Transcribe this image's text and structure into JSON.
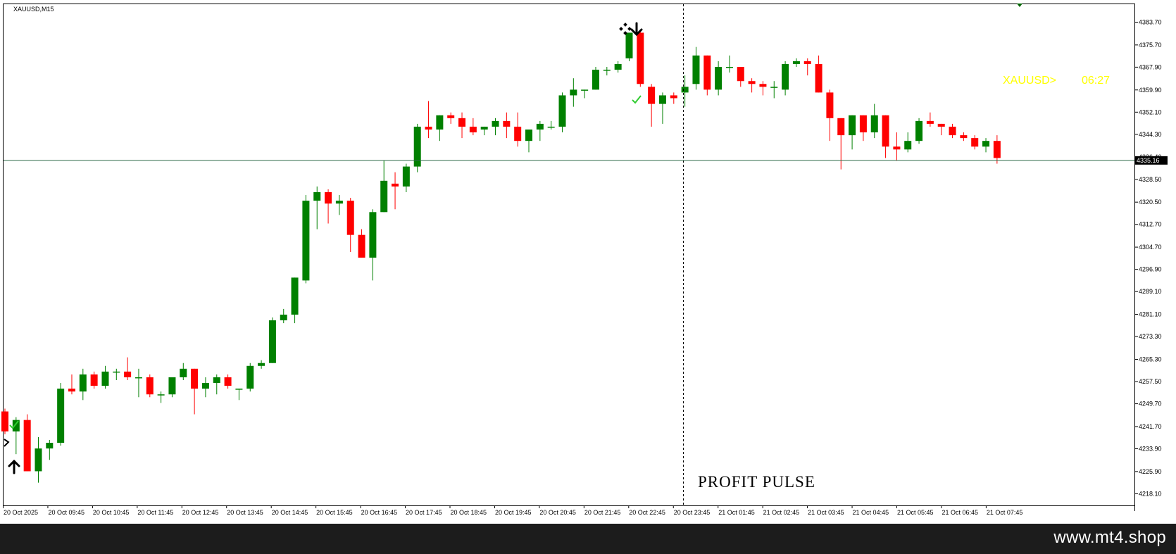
{
  "chart": {
    "symbol_label": "XAUUSD,M15",
    "info_symbol": "XAUUSD>",
    "info_timer": "06:27",
    "watermark": "PROFIT PULSE",
    "current_price_label": "4335.16",
    "colors": {
      "bull": "#008000",
      "bear": "#ff0000",
      "bid_line": "#2f6b4a",
      "info_text": "#ffff00",
      "axis": "#000000"
    }
  },
  "footer": {
    "text": "www.mt4.shop"
  },
  "chart_data": {
    "type": "candlestick",
    "symbol": "XAUUSD",
    "timeframe": "M15",
    "ylim": [
      4214,
      4390
    ],
    "y_ticks": [
      "4383.70",
      "4375.70",
      "4367.90",
      "4359.90",
      "4352.10",
      "4344.30",
      "4336.40",
      "4328.50",
      "4320.50",
      "4312.70",
      "4304.70",
      "4296.90",
      "4289.10",
      "4281.10",
      "4273.30",
      "4265.30",
      "4257.50",
      "4249.70",
      "4241.70",
      "4233.90",
      "4225.90",
      "4218.10"
    ],
    "x_ticks": [
      "20 Oct 2025",
      "20 Oct 09:45",
      "20 Oct 10:45",
      "20 Oct 11:45",
      "20 Oct 12:45",
      "20 Oct 13:45",
      "20 Oct 14:45",
      "20 Oct 15:45",
      "20 Oct 16:45",
      "20 Oct 17:45",
      "20 Oct 18:45",
      "20 Oct 19:45",
      "20 Oct 20:45",
      "20 Oct 21:45",
      "20 Oct 22:45",
      "20 Oct 23:45",
      "21 Oct 01:45",
      "21 Oct 02:45",
      "21 Oct 03:45",
      "21 Oct 04:45",
      "21 Oct 05:45",
      "21 Oct 06:45",
      "21 Oct 07:45"
    ],
    "current_price": 4335.16,
    "candles": [
      {
        "o": 4247,
        "h": 4248,
        "l": 4239,
        "c": 4240
      },
      {
        "o": 4240,
        "h": 4245,
        "l": 4232,
        "c": 4244
      },
      {
        "o": 4244,
        "h": 4246,
        "l": 4226,
        "c": 4226
      },
      {
        "o": 4226,
        "h": 4238,
        "l": 4222,
        "c": 4234
      },
      {
        "o": 4234,
        "h": 4237,
        "l": 4230,
        "c": 4236
      },
      {
        "o": 4236,
        "h": 4257,
        "l": 4235,
        "c": 4255
      },
      {
        "o": 4255,
        "h": 4260,
        "l": 4253,
        "c": 4254
      },
      {
        "o": 4254,
        "h": 4262,
        "l": 4251,
        "c": 4260
      },
      {
        "o": 4260,
        "h": 4261,
        "l": 4255,
        "c": 4256
      },
      {
        "o": 4256,
        "h": 4263,
        "l": 4255,
        "c": 4261
      },
      {
        "o": 4261,
        "h": 4262,
        "l": 4258,
        "c": 4261
      },
      {
        "o": 4261,
        "h": 4266,
        "l": 4258,
        "c": 4259
      },
      {
        "o": 4259,
        "h": 4262,
        "l": 4252,
        "c": 4259
      },
      {
        "o": 4259,
        "h": 4260,
        "l": 4252,
        "c": 4253
      },
      {
        "o": 4253,
        "h": 4254,
        "l": 4250,
        "c": 4253
      },
      {
        "o": 4253,
        "h": 4259,
        "l": 4252,
        "c": 4259
      },
      {
        "o": 4259,
        "h": 4264,
        "l": 4258,
        "c": 4262
      },
      {
        "o": 4262,
        "h": 4262,
        "l": 4246,
        "c": 4255
      },
      {
        "o": 4255,
        "h": 4259,
        "l": 4252,
        "c": 4257
      },
      {
        "o": 4257,
        "h": 4260,
        "l": 4253,
        "c": 4259
      },
      {
        "o": 4259,
        "h": 4260,
        "l": 4255,
        "c": 4256
      },
      {
        "o": 4255,
        "h": 4255,
        "l": 4251,
        "c": 4255
      },
      {
        "o": 4255,
        "h": 4264,
        "l": 4254,
        "c": 4263
      },
      {
        "o": 4263,
        "h": 4265,
        "l": 4262,
        "c": 4264
      },
      {
        "o": 4264,
        "h": 4280,
        "l": 4264,
        "c": 4279
      },
      {
        "o": 4279,
        "h": 4283,
        "l": 4278,
        "c": 4281
      },
      {
        "o": 4281,
        "h": 4294,
        "l": 4278,
        "c": 4294
      },
      {
        "o": 4293,
        "h": 4323,
        "l": 4292,
        "c": 4321
      },
      {
        "o": 4321,
        "h": 4326,
        "l": 4311,
        "c": 4324
      },
      {
        "o": 4324,
        "h": 4325,
        "l": 4313,
        "c": 4320
      },
      {
        "o": 4320,
        "h": 4323,
        "l": 4316,
        "c": 4321
      },
      {
        "o": 4321,
        "h": 4322,
        "l": 4303,
        "c": 4309
      },
      {
        "o": 4309,
        "h": 4311,
        "l": 4301,
        "c": 4301
      },
      {
        "o": 4301,
        "h": 4318,
        "l": 4293,
        "c": 4317
      },
      {
        "o": 4317,
        "h": 4335,
        "l": 4317,
        "c": 4328
      },
      {
        "o": 4327,
        "h": 4331,
        "l": 4318,
        "c": 4326
      },
      {
        "o": 4326,
        "h": 4334,
        "l": 4324,
        "c": 4333
      },
      {
        "o": 4333,
        "h": 4348,
        "l": 4331,
        "c": 4347
      },
      {
        "o": 4347,
        "h": 4356,
        "l": 4343,
        "c": 4346
      },
      {
        "o": 4346,
        "h": 4351,
        "l": 4342,
        "c": 4351
      },
      {
        "o": 4351,
        "h": 4352,
        "l": 4348,
        "c": 4350
      },
      {
        "o": 4350,
        "h": 4352,
        "l": 4343,
        "c": 4347
      },
      {
        "o": 4347,
        "h": 4350,
        "l": 4344,
        "c": 4345
      },
      {
        "o": 4346,
        "h": 4347,
        "l": 4344,
        "c": 4347
      },
      {
        "o": 4347,
        "h": 4350,
        "l": 4344,
        "c": 4349
      },
      {
        "o": 4349,
        "h": 4352,
        "l": 4343,
        "c": 4347
      },
      {
        "o": 4347,
        "h": 4352,
        "l": 4340,
        "c": 4342
      },
      {
        "o": 4342,
        "h": 4346,
        "l": 4338,
        "c": 4346
      },
      {
        "o": 4346,
        "h": 4349,
        "l": 4342,
        "c": 4348
      },
      {
        "o": 4347,
        "h": 4349,
        "l": 4346,
        "c": 4347
      },
      {
        "o": 4347,
        "h": 4359,
        "l": 4345,
        "c": 4358
      },
      {
        "o": 4358,
        "h": 4364,
        "l": 4354,
        "c": 4360
      },
      {
        "o": 4360,
        "h": 4360,
        "l": 4357,
        "c": 4360
      },
      {
        "o": 4360,
        "h": 4368,
        "l": 4360,
        "c": 4367
      },
      {
        "o": 4367,
        "h": 4368,
        "l": 4365,
        "c": 4367
      },
      {
        "o": 4367,
        "h": 4370,
        "l": 4366,
        "c": 4369
      },
      {
        "o": 4371,
        "h": 4380,
        "l": 4370,
        "c": 4380
      },
      {
        "o": 4380,
        "h": 4381,
        "l": 4361,
        "c": 4362
      },
      {
        "o": 4361,
        "h": 4362,
        "l": 4347,
        "c": 4355
      },
      {
        "o": 4355,
        "h": 4359,
        "l": 4348,
        "c": 4358
      },
      {
        "o": 4358,
        "h": 4359,
        "l": 4355,
        "c": 4357
      },
      {
        "o": 4359,
        "h": 4365,
        "l": 4354,
        "c": 4361
      },
      {
        "o": 4362,
        "h": 4375,
        "l": 4360,
        "c": 4372
      },
      {
        "o": 4372,
        "h": 4372,
        "l": 4358,
        "c": 4360
      },
      {
        "o": 4360,
        "h": 4370,
        "l": 4358,
        "c": 4368
      },
      {
        "o": 4368,
        "h": 4372,
        "l": 4366,
        "c": 4368
      },
      {
        "o": 4368,
        "h": 4368,
        "l": 4361,
        "c": 4363
      },
      {
        "o": 4363,
        "h": 4364,
        "l": 4359,
        "c": 4362
      },
      {
        "o": 4362,
        "h": 4363,
        "l": 4358,
        "c": 4361
      },
      {
        "o": 4361,
        "h": 4363,
        "l": 4357,
        "c": 4361
      },
      {
        "o": 4360,
        "h": 4370,
        "l": 4358,
        "c": 4369
      },
      {
        "o": 4369,
        "h": 4371,
        "l": 4368,
        "c": 4370
      },
      {
        "o": 4370,
        "h": 4371,
        "l": 4365,
        "c": 4369
      },
      {
        "o": 4369,
        "h": 4372,
        "l": 4359,
        "c": 4359
      },
      {
        "o": 4359,
        "h": 4360,
        "l": 4342,
        "c": 4350
      },
      {
        "o": 4350,
        "h": 4350,
        "l": 4332,
        "c": 4344
      },
      {
        "o": 4344,
        "h": 4351,
        "l": 4339,
        "c": 4351
      },
      {
        "o": 4351,
        "h": 4351,
        "l": 4342,
        "c": 4345
      },
      {
        "o": 4345,
        "h": 4355,
        "l": 4343,
        "c": 4351
      },
      {
        "o": 4351,
        "h": 4351,
        "l": 4336,
        "c": 4340
      },
      {
        "o": 4340,
        "h": 4345,
        "l": 4335,
        "c": 4339
      },
      {
        "o": 4339,
        "h": 4345,
        "l": 4338,
        "c": 4342
      },
      {
        "o": 4342,
        "h": 4350,
        "l": 4341,
        "c": 4349
      },
      {
        "o": 4349,
        "h": 4352,
        "l": 4347,
        "c": 4348
      },
      {
        "o": 4348,
        "h": 4348,
        "l": 4344,
        "c": 4347
      },
      {
        "o": 4347,
        "h": 4348,
        "l": 4343,
        "c": 4344
      },
      {
        "o": 4344,
        "h": 4345,
        "l": 4342,
        "c": 4343
      },
      {
        "o": 4343,
        "h": 4344,
        "l": 4339,
        "c": 4340
      },
      {
        "o": 4340,
        "h": 4343,
        "l": 4338,
        "c": 4342
      },
      {
        "o": 4342,
        "h": 4344,
        "l": 4334,
        "c": 4336
      }
    ]
  }
}
